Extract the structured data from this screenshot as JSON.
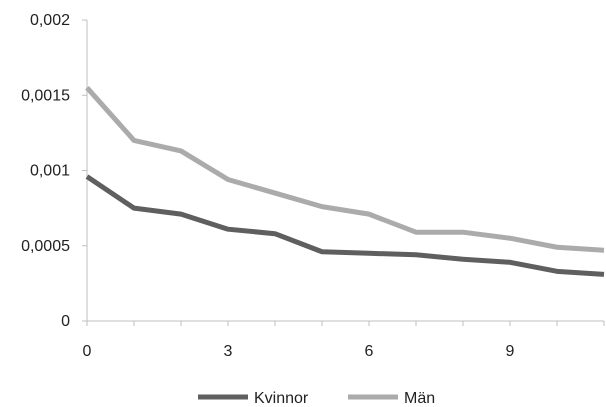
{
  "chart_data": {
    "type": "line",
    "x": [
      0,
      1,
      2,
      3,
      4,
      5,
      6,
      7,
      8,
      9,
      10,
      11
    ],
    "xticks": [
      0,
      3,
      6,
      9
    ],
    "xtick_labels": [
      "0",
      "3",
      "6",
      "9"
    ],
    "xlim": [
      0,
      11
    ],
    "yticks": [
      0,
      0.0005,
      0.001,
      0.0015,
      0.002
    ],
    "ytick_labels": [
      "0",
      "0,0005",
      "0,001",
      "0,0015",
      "0,002"
    ],
    "ylim": [
      0,
      0.002
    ],
    "grid": false,
    "legend_position": "bottom",
    "title": "",
    "xlabel": "",
    "ylabel": "",
    "series": [
      {
        "name": "Kvinnor",
        "color": "#5f5f5f",
        "values": [
          0.00096,
          0.00075,
          0.00071,
          0.00061,
          0.00058,
          0.00046,
          0.00045,
          0.00044,
          0.00041,
          0.00039,
          0.00033,
          0.00031
        ]
      },
      {
        "name": "Män",
        "color": "#ababab",
        "values": [
          0.00155,
          0.0012,
          0.00113,
          0.00094,
          0.00085,
          0.00076,
          0.00071,
          0.00059,
          0.00059,
          0.00055,
          0.00049,
          0.00047
        ]
      }
    ]
  }
}
